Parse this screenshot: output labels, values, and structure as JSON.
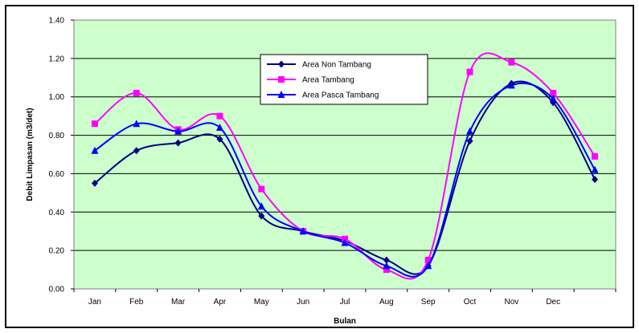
{
  "chart_data": {
    "type": "line",
    "title": "",
    "xlabel": "Bulan",
    "ylabel": "Debit Limpasan (m3/det)",
    "categories": [
      "Jan",
      "Feb",
      "Mar",
      "Apr",
      "May",
      "Jun",
      "Jul",
      "Aug",
      "Sep",
      "Oct",
      "Nov",
      "Dec",
      ""
    ],
    "ylim": [
      0,
      1.4
    ],
    "yticks": [
      "0.00",
      "0.20",
      "0.40",
      "0.60",
      "0.80",
      "1.00",
      "1.20",
      "1.40"
    ],
    "grid": "horizontal",
    "plot_background": "#ccffcc",
    "legend_position": "top-center",
    "series": [
      {
        "name": "Area Non Tambang",
        "color": "#000080",
        "marker": "diamond",
        "values": [
          0.55,
          0.72,
          0.76,
          0.78,
          0.38,
          0.3,
          0.25,
          0.15,
          0.12,
          0.77,
          1.07,
          0.97,
          0.57
        ]
      },
      {
        "name": "Area Tambang",
        "color": "#ff00ff",
        "marker": "square",
        "values": [
          0.86,
          1.02,
          0.83,
          0.9,
          0.52,
          0.3,
          0.26,
          0.1,
          0.15,
          1.13,
          1.18,
          1.02,
          0.69
        ]
      },
      {
        "name": "Area Pasca Tambang",
        "color": "#0000ff",
        "marker": "triangle",
        "values": [
          0.72,
          0.86,
          0.82,
          0.84,
          0.43,
          0.3,
          0.24,
          0.12,
          0.12,
          0.82,
          1.06,
          0.99,
          0.62
        ]
      }
    ]
  }
}
